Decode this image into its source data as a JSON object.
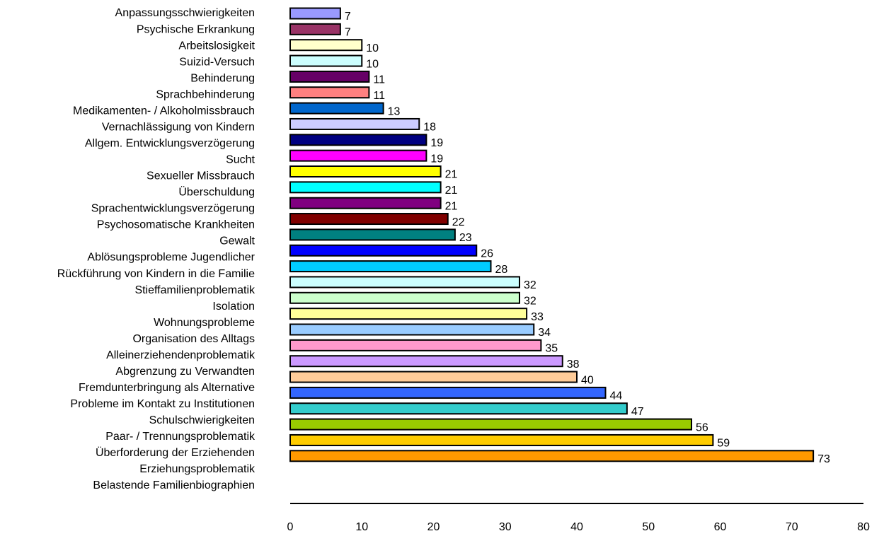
{
  "chart_data": {
    "type": "bar",
    "orientation": "horizontal",
    "categories": [
      "Anpassungsschwierigkeiten",
      "Psychische Erkrankung",
      "Arbeitslosigkeit",
      "Suizid-Versuch",
      "Behinderung",
      "Sprachbehinderung",
      "Medikamenten- / Alkoholmissbrauch",
      "Vernachlässigung von Kindern",
      "Allgem. Entwicklungsverzögerung",
      "Sucht",
      "Sexueller Missbrauch",
      "Überschuldung",
      "Sprachentwicklungsverzögerung",
      "Psychosomatische Krankheiten",
      "Gewalt",
      "Ablösungsprobleme Jugendlicher",
      "Rückführung von Kindern in die Familie",
      "Stieffamilienproblematik",
      "Isolation",
      "Wohnungsprobleme",
      "Organisation des Alltags",
      "Alleinerziehendenproblematik",
      "Abgrenzung zu Verwandten",
      "Fremdunterbringung als Alternative",
      "Probleme im Kontakt zu Institutionen",
      "Schulschwierigkeiten",
      "Paar- / Trennungsproblematik",
      "Überforderung der Erziehenden",
      "Erziehungsproblematik",
      "Belastende Familienbiographien"
    ],
    "values": [
      7,
      7,
      10,
      10,
      11,
      11,
      13,
      18,
      19,
      19,
      21,
      21,
      21,
      22,
      23,
      26,
      28,
      32,
      32,
      33,
      34,
      35,
      38,
      40,
      44,
      47,
      56,
      59,
      73,
      null
    ],
    "colors": [
      "#9999ff",
      "#993366",
      "#ffffcc",
      "#ccffff",
      "#660066",
      "#ff8080",
      "#0066cc",
      "#ccccff",
      "#000080",
      "#ff00ff",
      "#ffff00",
      "#00ffff",
      "#800080",
      "#800000",
      "#008080",
      "#0000ff",
      "#00ccff",
      "#ccffff",
      "#ccffcc",
      "#ffff99",
      "#99ccff",
      "#ff99cc",
      "#cc99ff",
      "#ffcc99",
      "#3366ff",
      "#33cccc",
      "#99cc00",
      "#ffcc00",
      "#ff9900",
      null
    ],
    "xlim": [
      0,
      80
    ],
    "xticks": [
      0,
      10,
      20,
      30,
      40,
      50,
      60,
      70,
      80
    ]
  }
}
